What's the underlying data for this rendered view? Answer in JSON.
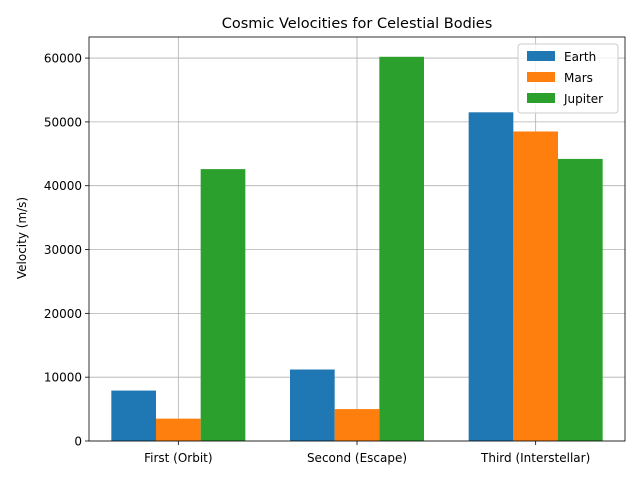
{
  "chart_data": {
    "type": "bar",
    "title": "Cosmic Velocities for Celestial Bodies",
    "xlabel": "",
    "ylabel": "Velocity (m/s)",
    "categories": [
      "First (Orbit)",
      "Second (Escape)",
      "Third (Interstellar)"
    ],
    "series": [
      {
        "name": "Earth",
        "color": "#1f77b4",
        "values": [
          7900,
          11200,
          51500
        ]
      },
      {
        "name": "Mars",
        "color": "#ff7f0e",
        "values": [
          3500,
          5000,
          48500
        ]
      },
      {
        "name": "Jupiter",
        "color": "#2ca02c",
        "values": [
          42600,
          60200,
          44200
        ]
      }
    ],
    "ylim": [
      0,
      63300
    ],
    "yticks": [
      0,
      10000,
      20000,
      30000,
      40000,
      50000,
      60000
    ],
    "grid": true,
    "legend_position": "top-right"
  }
}
